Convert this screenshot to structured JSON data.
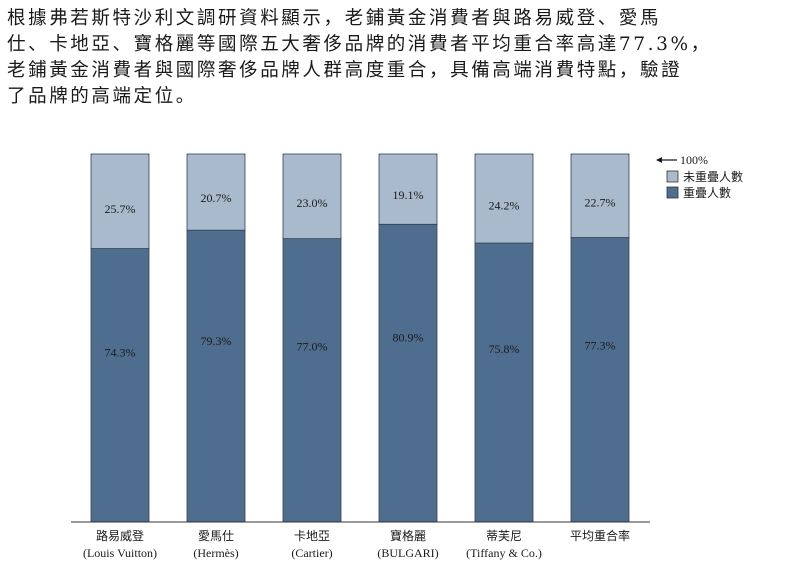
{
  "paragraph": {
    "lines": [
      "根據弗若斯特沙利文調研資料顯示，老鋪黃金消費者與路易威登、愛馬",
      "仕、卡地亞、寶格麗等國際五大奢侈品牌的消費者平均重合率高達77.3%，",
      "老鋪黃金消費者與國際奢侈品牌人群高度重合，具備高端消費特點，驗證",
      "了品牌的高端定位。"
    ]
  },
  "chart_data": {
    "type": "bar",
    "stacked": true,
    "categories": [
      [
        "路易威登",
        "(Louis Vuitton)"
      ],
      [
        "愛馬仕",
        "(Hermès)"
      ],
      [
        "卡地亞",
        "(Cartier)"
      ],
      [
        "寶格麗",
        "(BULGARI)"
      ],
      [
        "蒂芙尼",
        "(Tiffany & Co.)"
      ],
      [
        "平均重合率",
        ""
      ]
    ],
    "series": [
      {
        "name": "重疊人數",
        "values": [
          74.3,
          79.3,
          77.0,
          80.9,
          75.8,
          77.3
        ],
        "labels": [
          "74.3%",
          "79.3%",
          "77.0%",
          "80.9%",
          "75.8%",
          "77.3%"
        ],
        "color": "#4f6e8f"
      },
      {
        "name": "未重疊人數",
        "values": [
          25.7,
          20.7,
          23.0,
          19.1,
          24.2,
          22.7
        ],
        "labels": [
          "25.7%",
          "20.7%",
          "23.0%",
          "19.1%",
          "24.2%",
          "22.7%"
        ],
        "color": "#a9bacc"
      }
    ],
    "ylim": [
      0,
      100
    ],
    "legend": {
      "position": "top-right",
      "total_label": "100%"
    },
    "grid": false
  }
}
